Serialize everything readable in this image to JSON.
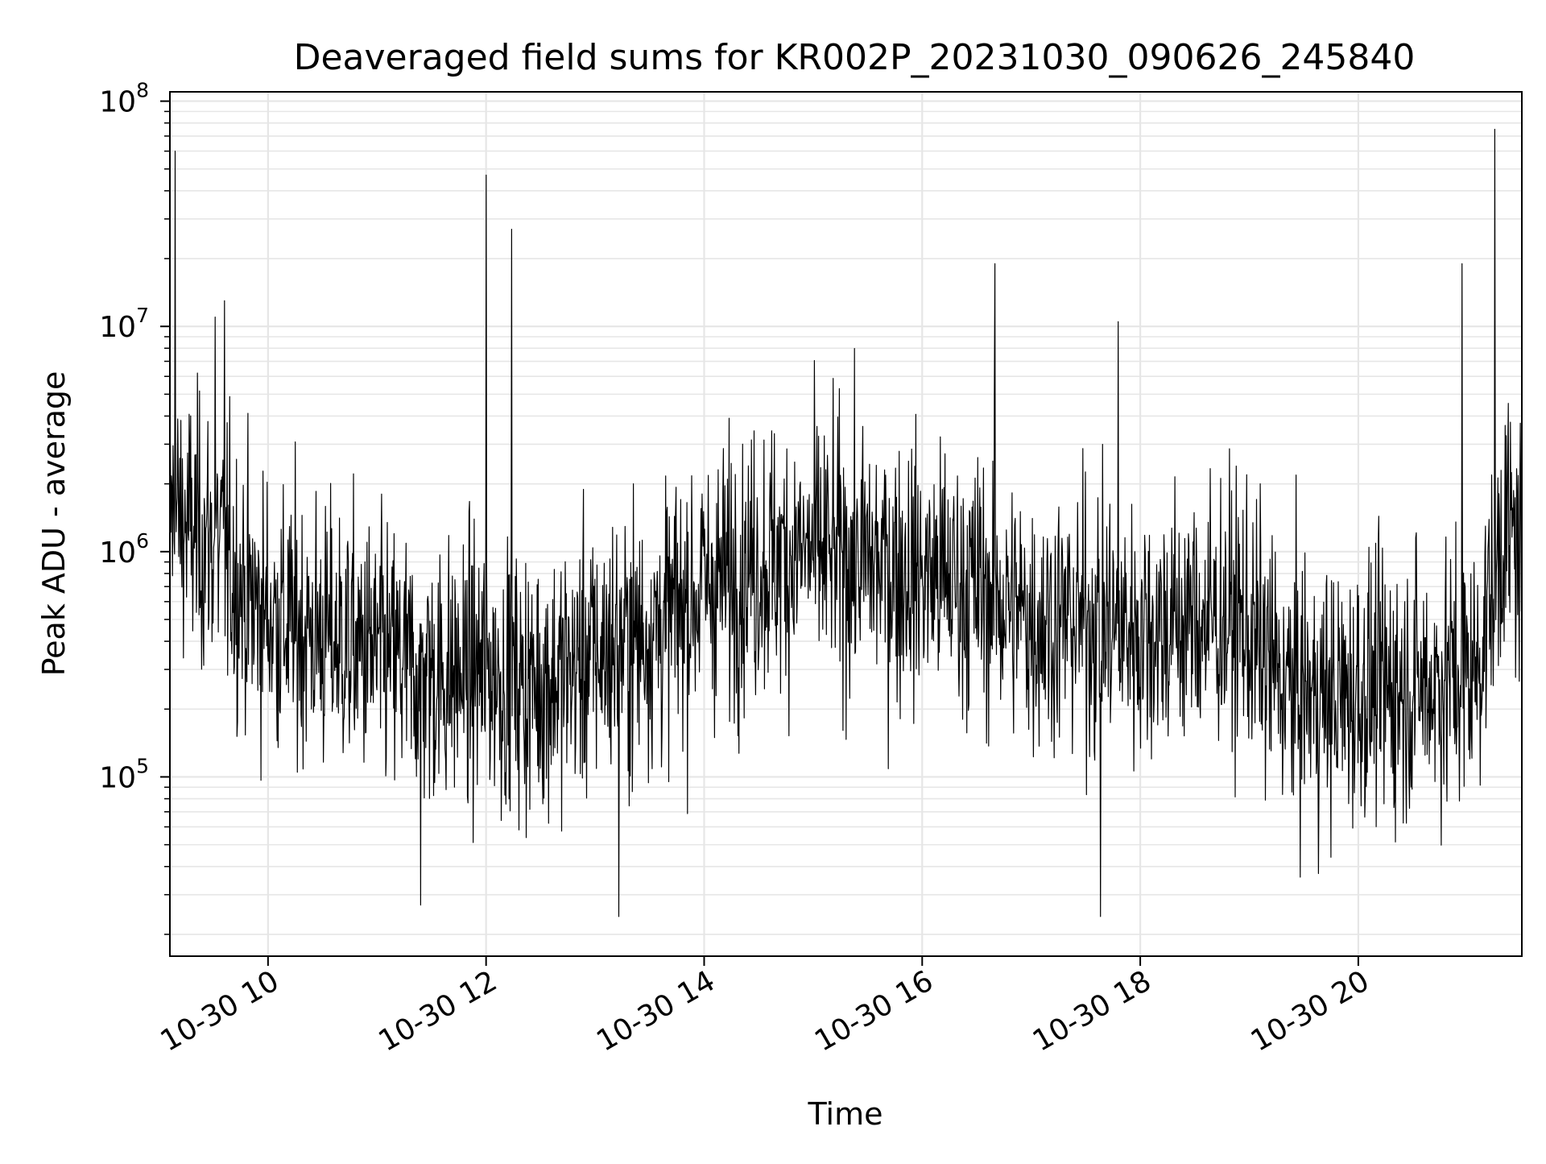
{
  "chart_data": {
    "type": "line",
    "title": "Deaveraged field sums for KR002P_20231030_090626_245840",
    "xlabel": "Time",
    "ylabel": "Peak ADU - average",
    "yscale": "log",
    "xlim": [
      "2023-10-30 09:06",
      "2023-10-30 21:30"
    ],
    "ylim": [
      16000,
      110000000
    ],
    "grid": true,
    "line_color": "#000000",
    "grid_color": "#e6e6e6",
    "x_ticks": [
      {
        "value": "2023-10-30 10:00",
        "label": "10-30 10"
      },
      {
        "value": "2023-10-30 12:00",
        "label": "10-30 12"
      },
      {
        "value": "2023-10-30 14:00",
        "label": "10-30 14"
      },
      {
        "value": "2023-10-30 16:00",
        "label": "10-30 16"
      },
      {
        "value": "2023-10-30 18:00",
        "label": "10-30 18"
      },
      {
        "value": "2023-10-30 20:00",
        "label": "10-30 20"
      }
    ],
    "y_ticks": [
      {
        "value": 100000,
        "base": "10",
        "exp": "5"
      },
      {
        "value": 1000000,
        "base": "10",
        "exp": "6"
      },
      {
        "value": 10000000,
        "base": "10",
        "exp": "7"
      },
      {
        "value": 100000000,
        "base": "10",
        "exp": "8"
      }
    ],
    "series": [
      {
        "x": [
          "2023-10-30 09:06",
          "2023-10-30 09:20",
          "2023-10-30 09:35",
          "2023-10-30 09:50",
          "2023-10-30 10:05",
          "2023-10-30 10:20",
          "2023-10-30 10:40",
          "2023-10-30 11:00",
          "2023-10-30 11:20",
          "2023-10-30 11:40",
          "2023-10-30 12:00",
          "2023-10-30 12:20",
          "2023-10-30 12:40",
          "2023-10-30 13:00",
          "2023-10-30 13:20",
          "2023-10-30 13:40",
          "2023-10-30 14:00",
          "2023-10-30 14:30",
          "2023-10-30 15:00",
          "2023-10-30 15:30",
          "2023-10-30 16:00",
          "2023-10-30 16:30",
          "2023-10-30 17:00",
          "2023-10-30 17:30",
          "2023-10-30 18:00",
          "2023-10-30 18:30",
          "2023-10-30 18:55",
          "2023-10-30 19:20",
          "2023-10-30 19:45",
          "2023-10-30 20:10",
          "2023-10-30 20:40",
          "2023-10-30 21:05",
          "2023-10-30 21:20",
          "2023-10-30 21:30"
        ],
        "values": [
          1500000,
          1200000,
          1000000,
          600000,
          500000,
          450000,
          400000,
          350000,
          300000,
          280000,
          300000,
          250000,
          280000,
          350000,
          400000,
          500000,
          700000,
          900000,
          1000000,
          900000,
          800000,
          700000,
          500000,
          500000,
          450000,
          500000,
          500000,
          250000,
          220000,
          250000,
          260000,
          300000,
          1300000,
          1000000
        ]
      }
    ],
    "spikes": [
      {
        "x": "2023-10-30 09:09",
        "value": 60000000
      },
      {
        "x": "2023-10-30 09:31",
        "value": 11000000
      },
      {
        "x": "2023-10-30 09:36",
        "value": 13000000
      },
      {
        "x": "2023-10-30 12:00",
        "value": 47000000
      },
      {
        "x": "2023-10-30 12:14",
        "value": 27000000
      },
      {
        "x": "2023-10-30 16:40",
        "value": 19000000
      },
      {
        "x": "2023-10-30 17:48",
        "value": 10500000
      },
      {
        "x": "2023-10-30 21:15",
        "value": 75000000
      },
      {
        "x": "2023-10-30 20:57",
        "value": 19000000
      },
      {
        "x": "2023-10-30 11:24",
        "value": 27000
      },
      {
        "x": "2023-10-30 13:13",
        "value": 24000
      },
      {
        "x": "2023-10-30 17:38",
        "value": 24000
      }
    ]
  }
}
